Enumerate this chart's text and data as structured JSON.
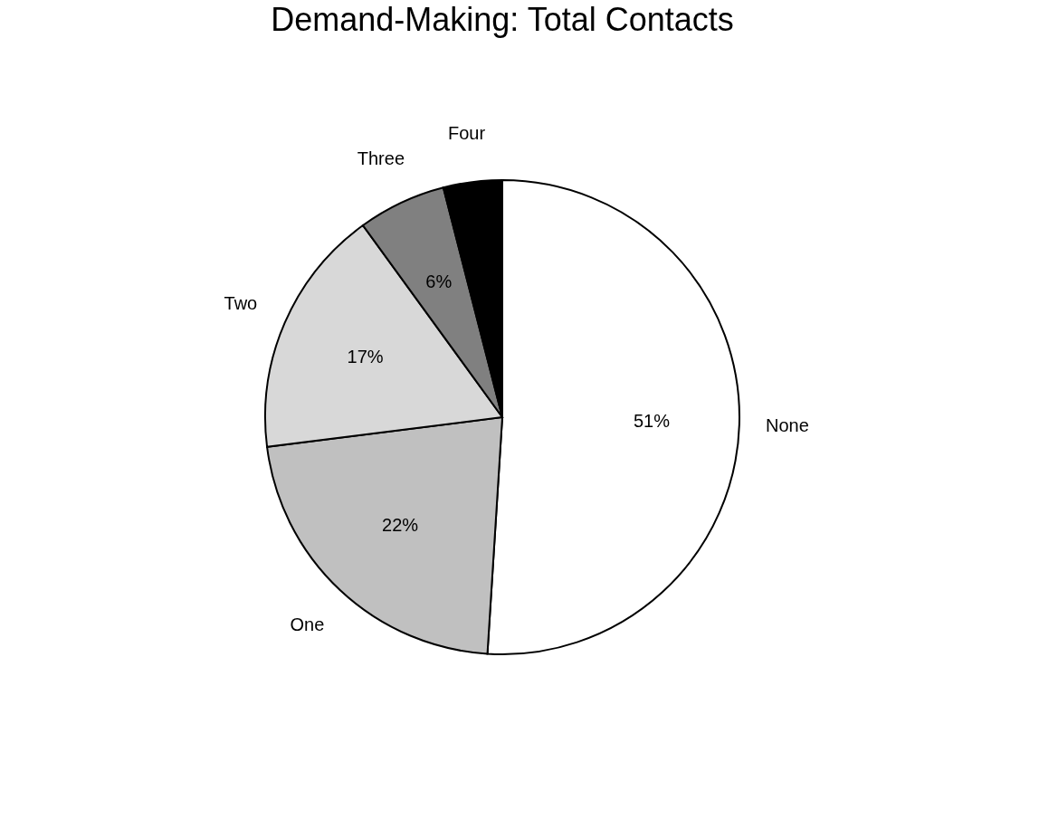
{
  "chart_data": {
    "type": "pie",
    "title": "Demand-Making: Total Contacts",
    "categories": [
      "None",
      "One",
      "Two",
      "Three",
      "Four"
    ],
    "values": [
      51,
      22,
      17,
      6,
      4
    ],
    "colors": [
      "#ffffff",
      "#c0c0c0",
      "#d8d8d8",
      "#808080",
      "#000000"
    ],
    "value_labels": [
      "51%",
      "22%",
      "17%",
      "6%",
      null
    ],
    "legend": false
  }
}
